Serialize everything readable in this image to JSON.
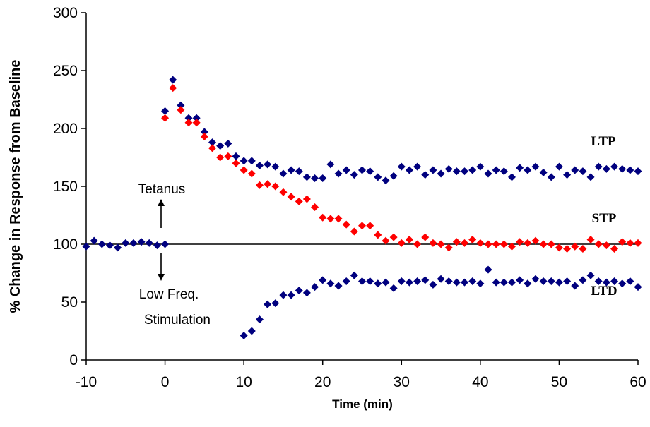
{
  "chart_data": {
    "type": "scatter",
    "title": "",
    "xlabel": "Time (min)",
    "ylabel": "% Change in Response from Baseline",
    "xlim": [
      -10,
      60
    ],
    "ylim": [
      0,
      300
    ],
    "xticks": [
      -10,
      0,
      10,
      20,
      30,
      40,
      50,
      60
    ],
    "yticks": [
      0,
      50,
      100,
      150,
      200,
      250,
      300
    ],
    "xtick_labels": [
      "-10",
      "0",
      "10",
      "20",
      "30",
      "40",
      "50",
      "60"
    ],
    "ytick_labels": [
      "0",
      "50",
      "100",
      "150",
      "200",
      "250",
      "300"
    ],
    "reference_line": 100,
    "grid": false,
    "legend": "none",
    "colors": {
      "blue": "#00007f",
      "red": "#ff0000",
      "axis": "#000000"
    },
    "annotations": {
      "tetanus": "Tetanus",
      "lfs_line1": "Low Freq.",
      "lfs_line2": "Stimulation",
      "ltp": "LTP",
      "stp": "STP",
      "ltd": "LTD"
    },
    "series": [
      {
        "id": "baseline",
        "color": "#00007f",
        "x": [
          -10,
          -9,
          -8,
          -7,
          -6,
          -5,
          -4,
          -3,
          -2,
          -1,
          0
        ],
        "y": [
          98,
          103,
          100,
          99,
          97,
          101,
          101,
          102,
          101,
          99,
          100
        ]
      },
      {
        "id": "ltp",
        "color": "#00007f",
        "x": [
          0,
          1,
          2,
          3,
          4,
          5,
          6,
          7,
          8,
          9,
          10,
          11,
          12,
          13,
          14,
          15,
          16,
          17,
          18,
          19,
          20,
          21,
          22,
          23,
          24,
          25,
          26,
          27,
          28,
          29,
          30,
          31,
          32,
          33,
          34,
          35,
          36,
          37,
          38,
          39,
          40,
          41,
          42,
          43,
          44,
          45,
          46,
          47,
          48,
          49,
          50,
          51,
          52,
          53,
          54,
          55,
          56,
          57,
          58,
          59,
          60
        ],
        "y": [
          215,
          242,
          220,
          209,
          209,
          197,
          188,
          185,
          187,
          176,
          172,
          172,
          168,
          169,
          167,
          161,
          164,
          163,
          158,
          157,
          157,
          169,
          161,
          164,
          160,
          164,
          163,
          158,
          155,
          159,
          167,
          164,
          167,
          160,
          164,
          161,
          165,
          163,
          163,
          164,
          167,
          161,
          164,
          163,
          158,
          166,
          164,
          167,
          162,
          158,
          167,
          160,
          164,
          163,
          158,
          167,
          165,
          167,
          165,
          164,
          163
        ]
      },
      {
        "id": "stp",
        "color": "#ff0000",
        "x": [
          0,
          1,
          2,
          3,
          4,
          5,
          6,
          7,
          8,
          9,
          10,
          11,
          12,
          13,
          14,
          15,
          16,
          17,
          18,
          19,
          20,
          21,
          22,
          23,
          24,
          25,
          26,
          27,
          28,
          29,
          30,
          31,
          32,
          33,
          34,
          35,
          36,
          37,
          38,
          39,
          40,
          41,
          42,
          43,
          44,
          45,
          46,
          47,
          48,
          49,
          50,
          51,
          52,
          53,
          54,
          55,
          56,
          57,
          58,
          59,
          60
        ],
        "y": [
          209,
          235,
          216,
          205,
          205,
          193,
          183,
          175,
          176,
          170,
          164,
          161,
          151,
          152,
          150,
          145,
          141,
          137,
          139,
          132,
          123,
          122,
          122,
          117,
          111,
          116,
          116,
          108,
          103,
          106,
          101,
          104,
          100,
          106,
          101,
          100,
          97,
          102,
          101,
          104,
          101,
          100,
          100,
          100,
          98,
          102,
          101,
          103,
          100,
          100,
          97,
          96,
          98,
          96,
          104,
          100,
          99,
          96,
          102,
          101,
          101
        ]
      },
      {
        "id": "ltd",
        "color": "#00007f",
        "x": [
          10,
          11,
          12,
          13,
          14,
          15,
          16,
          17,
          18,
          19,
          20,
          21,
          22,
          23,
          24,
          25,
          26,
          27,
          28,
          29,
          30,
          31,
          32,
          33,
          34,
          35,
          36,
          37,
          38,
          39,
          40,
          41,
          42,
          43,
          44,
          45,
          46,
          47,
          48,
          49,
          50,
          51,
          52,
          53,
          54,
          55,
          56,
          57,
          58,
          59,
          60
        ],
        "y": [
          21,
          25,
          35,
          48,
          49,
          56,
          56,
          60,
          58,
          63,
          69,
          66,
          64,
          68,
          73,
          68,
          68,
          66,
          67,
          62,
          68,
          67,
          68,
          69,
          65,
          70,
          68,
          67,
          67,
          68,
          66,
          78,
          67,
          67,
          67,
          69,
          66,
          70,
          68,
          68,
          67,
          68,
          64,
          69,
          73,
          68,
          67,
          68,
          66,
          68,
          63
        ]
      }
    ]
  }
}
